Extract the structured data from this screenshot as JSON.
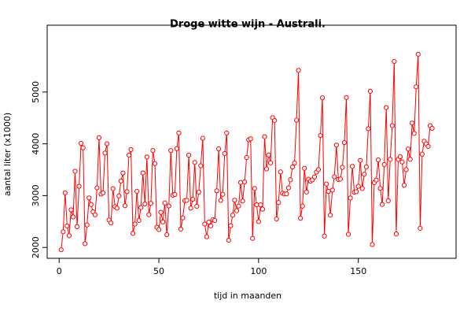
{
  "chart_data": {
    "type": "line",
    "title": "Droge witte wijn - Australi.",
    "xlabel": "tijd in maanden",
    "ylabel": "aantal liter (x1000)",
    "x": [
      1,
      2,
      3,
      4,
      5,
      6,
      7,
      8,
      9,
      10,
      11,
      12,
      13,
      14,
      15,
      16,
      17,
      18,
      19,
      20,
      21,
      22,
      23,
      24,
      25,
      26,
      27,
      28,
      29,
      30,
      31,
      32,
      33,
      34,
      35,
      36,
      37,
      38,
      39,
      40,
      41,
      42,
      43,
      44,
      45,
      46,
      47,
      48,
      49,
      50,
      51,
      52,
      53,
      54,
      55,
      56,
      57,
      58,
      59,
      60,
      61,
      62,
      63,
      64,
      65,
      66,
      67,
      68,
      69,
      70,
      71,
      72,
      73,
      74,
      75,
      76,
      77,
      78,
      79,
      80,
      81,
      82,
      83,
      84,
      85,
      86,
      87,
      88,
      89,
      90,
      91,
      92,
      93,
      94,
      95,
      96,
      97,
      98,
      99,
      100,
      101,
      102,
      103,
      104,
      105,
      106,
      107,
      108,
      109,
      110,
      111,
      112,
      113,
      114,
      115,
      116,
      117,
      118,
      119,
      120,
      121,
      122,
      123,
      124,
      125,
      126,
      127,
      128,
      129,
      130,
      131,
      132,
      133,
      134,
      135,
      136,
      137,
      138,
      139,
      140,
      141,
      142,
      143,
      144,
      145,
      146,
      147,
      148,
      149,
      150,
      151,
      152,
      153,
      154,
      155,
      156,
      157,
      158,
      159,
      160,
      161,
      162,
      163,
      164,
      165,
      166,
      167,
      168,
      169,
      170,
      171,
      172,
      173,
      174,
      175,
      176,
      177,
      178,
      179,
      180,
      181,
      182,
      183,
      184,
      185,
      186,
      187
    ],
    "series": [
      {
        "color": "#ff0000",
        "values": [
          1954,
          2302,
          3054,
          2414,
          2226,
          2725,
          2589,
          3470,
          2400,
          3180,
          4009,
          3924,
          2072,
          2434,
          2956,
          2828,
          2687,
          2629,
          3150,
          4119,
          3030,
          3055,
          3821,
          4001,
          2529,
          2472,
          3134,
          2789,
          2758,
          2993,
          3282,
          3437,
          2804,
          3076,
          3782,
          3889,
          2271,
          2452,
          3084,
          2522,
          2769,
          3438,
          2839,
          3746,
          2632,
          2851,
          3871,
          3618,
          2389,
          2344,
          2678,
          2492,
          2858,
          2246,
          2800,
          3869,
          3007,
          3023,
          3907,
          4209,
          2353,
          2570,
          2903,
          2910,
          3782,
          2759,
          2931,
          3641,
          2794,
          3070,
          3576,
          4106,
          2452,
          2206,
          2488,
          2416,
          2534,
          2521,
          3093,
          3903,
          2907,
          3025,
          3812,
          4209,
          2138,
          2419,
          2622,
          2912,
          2708,
          2798,
          3254,
          2895,
          3263,
          3736,
          4077,
          4097,
          2175,
          3138,
          2823,
          2498,
          2822,
          2738,
          4137,
          3515,
          3785,
          3632,
          4504,
          4451,
          2550,
          2867,
          3458,
          3046,
          3031,
          3034,
          3150,
          3305,
          3553,
          3629,
          4458,
          5418,
          2563,
          2797,
          3527,
          3069,
          3317,
          3278,
          3304,
          3361,
          3454,
          3502,
          4159,
          4888,
          2218,
          3225,
          3082,
          2623,
          3106,
          3364,
          3976,
          3311,
          3320,
          3546,
          4024,
          4894,
          2252,
          2953,
          3565,
          3066,
          3076,
          3180,
          3680,
          3137,
          3413,
          3556,
          4292,
          5015,
          2056,
          3250,
          3300,
          3690,
          3140,
          2830,
          3600,
          4700,
          2900,
          3700,
          4350,
          5590,
          2260,
          3700,
          3750,
          3650,
          3200,
          3500,
          3900,
          3700,
          4400,
          4200,
          5100,
          5730,
          2370,
          3800,
          4050,
          4000,
          3950,
          4350,
          4300
        ]
      }
    ],
    "xlim": [
      -6,
      199
    ],
    "ylim": [
      1790,
      6290
    ],
    "xticks": [
      0,
      50,
      100,
      150
    ],
    "yticks": [
      2000,
      3000,
      4000,
      5000
    ]
  }
}
